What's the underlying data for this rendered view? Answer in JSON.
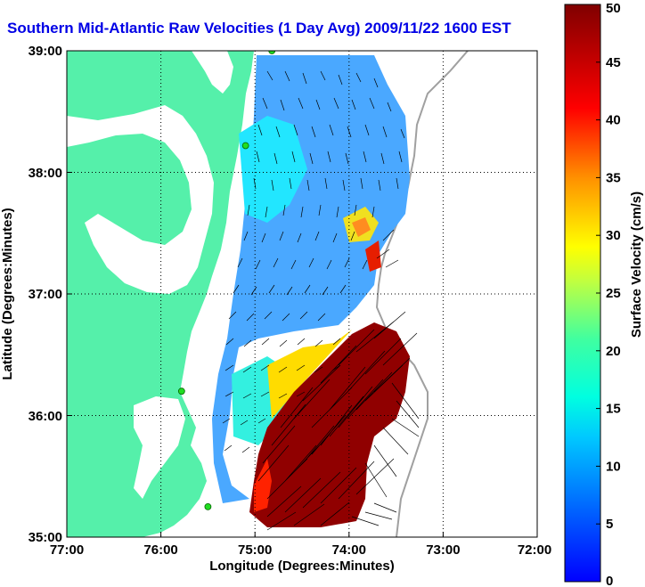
{
  "title": "Southern Mid-Atlantic Raw Velocities (1 Day Avg) 2009/11/22 1600 EST",
  "map": {
    "xlabel": "Longitude (Degrees:Minutes)",
    "ylabel": "Latitude (Degrees:Minutes)",
    "x_ticks": [
      "77:00",
      "76:00",
      "75:00",
      "74:00",
      "73:00",
      "72:00"
    ],
    "y_ticks": [
      "39:00",
      "38:00",
      "37:00",
      "36:00",
      "35:00"
    ],
    "xlim": [
      -77,
      -72
    ],
    "ylim": [
      35,
      39
    ],
    "grid": true,
    "land_color": "#55f0aa",
    "stations": [
      {
        "lon": -74.82,
        "lat": 39.0
      },
      {
        "lon": -75.1,
        "lat": 38.22
      },
      {
        "lon": -75.78,
        "lat": 36.2
      },
      {
        "lon": -75.5,
        "lat": 35.25
      }
    ]
  },
  "colorbar": {
    "label": "Surface Velocity (cm/s)",
    "ticks": [
      "0",
      "5",
      "10",
      "15",
      "20",
      "25",
      "30",
      "35",
      "40",
      "45",
      "50"
    ],
    "range": [
      0,
      50
    ],
    "colormap": "jet"
  }
}
